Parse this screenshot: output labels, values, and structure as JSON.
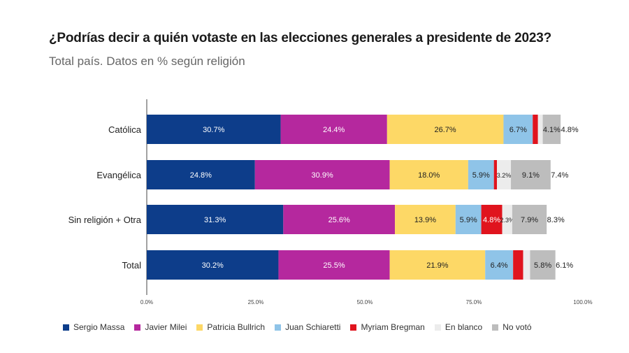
{
  "title": "¿Podrías decir a quién votaste en las elecciones generales a presidente de 2023?",
  "subtitle": "Total país. Datos en % según religión",
  "chart_data": {
    "type": "bar",
    "orientation": "horizontal",
    "stacked": true,
    "categories": [
      "Católica",
      "Evangélica",
      "Sin religión + Otra",
      "Total"
    ],
    "series": [
      {
        "name": "Sergio Massa",
        "color": "#0d3d8a",
        "values": [
          30.7,
          24.8,
          31.3,
          30.2
        ],
        "labels": [
          "30.7%",
          "24.8%",
          "31.3%",
          "30.2%"
        ]
      },
      {
        "name": "Javier Milei",
        "color": "#b5289e",
        "values": [
          24.4,
          30.9,
          25.6,
          25.5
        ],
        "labels": [
          "24.4%",
          "30.9%",
          "25.6%",
          "25.5%"
        ]
      },
      {
        "name": "Patricia Bullrich",
        "color": "#fdd866",
        "values": [
          26.7,
          18.0,
          13.9,
          21.9
        ],
        "labels": [
          "26.7%",
          "18.0%",
          "13.9%",
          "21.9%"
        ]
      },
      {
        "name": "Juan Schiaretti",
        "color": "#8fc4e8",
        "values": [
          6.7,
          5.9,
          5.9,
          6.4
        ],
        "labels": [
          "6.7%",
          "5.9%",
          "5.9%",
          "6.4%"
        ]
      },
      {
        "name": "Myriam Bregman",
        "color": "#e0141e",
        "values": [
          1.2,
          0.7,
          4.8,
          2.3
        ],
        "labels": [
          "",
          "",
          "4.8%",
          ""
        ]
      },
      {
        "name": "En blanco",
        "color": "#ececec",
        "values": [
          1.1,
          3.2,
          2.3,
          1.6
        ],
        "labels": [
          "",
          "3.2%",
          "2.3%",
          ""
        ]
      },
      {
        "name": "No votó",
        "color": "#bdbdbd",
        "values": [
          4.1,
          9.1,
          7.9,
          5.8
        ],
        "labels": [
          "4.1%",
          "9.1%",
          "7.9%",
          "5.8%"
        ]
      }
    ],
    "outside_labels": [
      "4.8%",
      "7.4%",
      "8.3%",
      "6.1%"
    ],
    "x_ticks": [
      0,
      25,
      50,
      75,
      100
    ],
    "x_tick_labels": [
      "0.0%",
      "25.0%",
      "50.0%",
      "75.0%",
      "100.0%"
    ],
    "xlim": [
      0,
      100
    ],
    "xlabel": "",
    "ylabel": "",
    "grid": false,
    "legend_position": "bottom"
  }
}
